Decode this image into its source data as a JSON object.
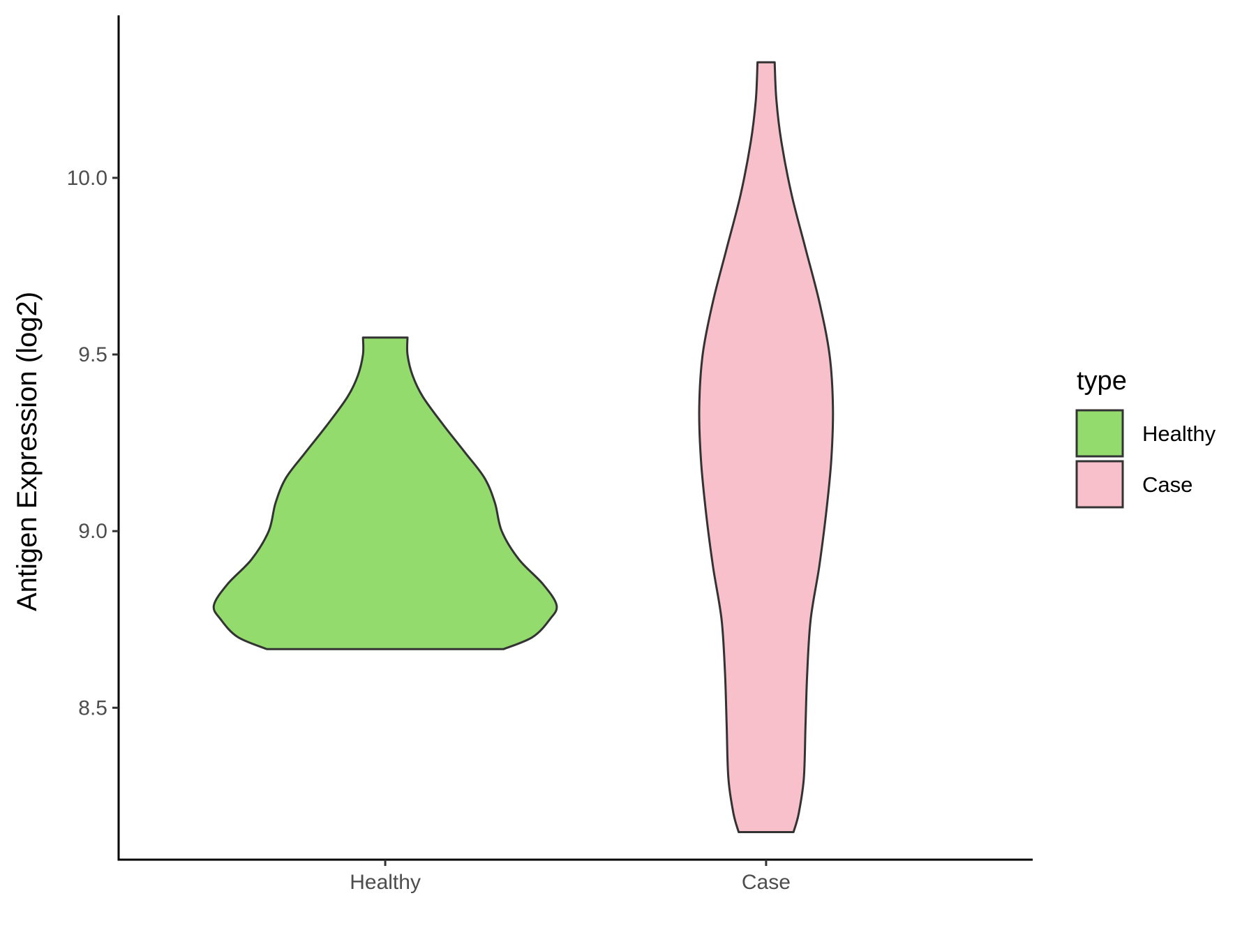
{
  "chart_data": {
    "type": "violin",
    "title": "",
    "xlabel": "",
    "ylabel": "Antigen Expression (log2)",
    "categories": [
      "Healthy",
      "Case"
    ],
    "ylim": [
      8.07,
      10.46
    ],
    "yticks": [
      8.5,
      9.0,
      9.5,
      10.0
    ],
    "ytick_labels": [
      "8.5",
      "9.0",
      "9.5",
      "10.0"
    ],
    "grid": false,
    "legend": {
      "title": "type",
      "position": "right",
      "entries": [
        {
          "label": "Healthy",
          "color": "#93DB6C"
        },
        {
          "label": "Case",
          "color": "#F7C0CB"
        }
      ]
    },
    "series": [
      {
        "category": "Healthy",
        "color": "#93DB6C",
        "min": 8.666,
        "max": 9.548,
        "density_profile": [
          {
            "y": 8.666,
            "half_width_rel": 0.69
          },
          {
            "y": 8.7,
            "half_width_rel": 0.86
          },
          {
            "y": 8.75,
            "half_width_rel": 0.96
          },
          {
            "y": 8.79,
            "half_width_rel": 1.0
          },
          {
            "y": 8.85,
            "half_width_rel": 0.92
          },
          {
            "y": 8.92,
            "half_width_rel": 0.78
          },
          {
            "y": 9.0,
            "half_width_rel": 0.68
          },
          {
            "y": 9.08,
            "half_width_rel": 0.64
          },
          {
            "y": 9.15,
            "half_width_rel": 0.58
          },
          {
            "y": 9.22,
            "half_width_rel": 0.47
          },
          {
            "y": 9.3,
            "half_width_rel": 0.34
          },
          {
            "y": 9.38,
            "half_width_rel": 0.22
          },
          {
            "y": 9.44,
            "half_width_rel": 0.16
          },
          {
            "y": 9.5,
            "half_width_rel": 0.13
          },
          {
            "y": 9.548,
            "half_width_rel": 0.13
          }
        ]
      },
      {
        "category": "Case",
        "color": "#F7C0CB",
        "min": 8.148,
        "max": 10.327,
        "density_profile": [
          {
            "y": 8.148,
            "half_width_rel": 0.16
          },
          {
            "y": 8.2,
            "half_width_rel": 0.19
          },
          {
            "y": 8.3,
            "half_width_rel": 0.22
          },
          {
            "y": 8.45,
            "half_width_rel": 0.23
          },
          {
            "y": 8.6,
            "half_width_rel": 0.24
          },
          {
            "y": 8.75,
            "half_width_rel": 0.26
          },
          {
            "y": 8.9,
            "half_width_rel": 0.31
          },
          {
            "y": 9.05,
            "half_width_rel": 0.35
          },
          {
            "y": 9.2,
            "half_width_rel": 0.38
          },
          {
            "y": 9.35,
            "half_width_rel": 0.39
          },
          {
            "y": 9.5,
            "half_width_rel": 0.37
          },
          {
            "y": 9.65,
            "half_width_rel": 0.31
          },
          {
            "y": 9.8,
            "half_width_rel": 0.23
          },
          {
            "y": 9.95,
            "half_width_rel": 0.15
          },
          {
            "y": 10.1,
            "half_width_rel": 0.09
          },
          {
            "y": 10.22,
            "half_width_rel": 0.06
          },
          {
            "y": 10.327,
            "half_width_rel": 0.05
          }
        ]
      }
    ]
  }
}
